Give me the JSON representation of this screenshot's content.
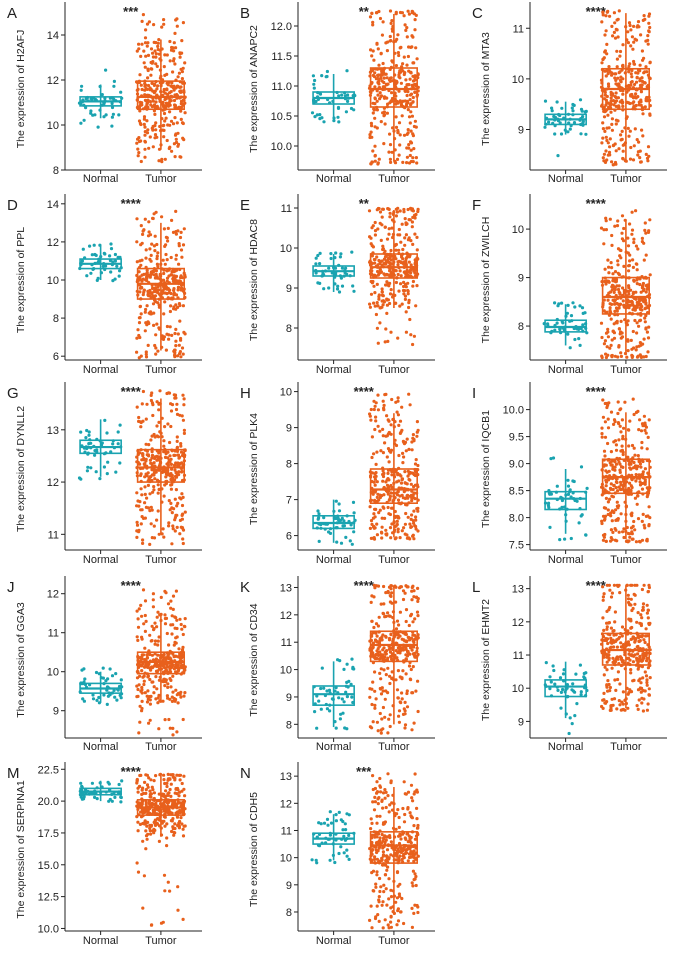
{
  "figure": {
    "style": {
      "normal_color": "#1AA3B0",
      "tumor_color": "#E8601C",
      "axis_color": "#222222"
    }
  },
  "chart_data": [
    {
      "type": "boxplot",
      "label": "A",
      "title": "",
      "ylabel": "The expression of H2AFJ",
      "xlabel": "",
      "categories": [
        "Normal",
        "Tumor"
      ],
      "significance": "***",
      "ylim": [
        8,
        15.2
      ],
      "yticks": [
        8,
        10,
        12,
        14
      ],
      "series": [
        {
          "name": "Normal",
          "box": {
            "q1": 10.85,
            "median": 11.05,
            "q3": 11.25,
            "whisker_low": 10.3,
            "whisker_high": 11.8
          },
          "range": [
            9.9,
            12.6
          ],
          "n": 50
        },
        {
          "name": "Tumor",
          "box": {
            "q1": 10.7,
            "median": 11.25,
            "q3": 11.95,
            "whisker_low": 8.9,
            "whisker_high": 13.8
          },
          "range": [
            8.3,
            15.0
          ],
          "n": 350
        }
      ]
    },
    {
      "type": "boxplot",
      "label": "B",
      "title": "",
      "ylabel": "The expression of ANAPC2",
      "xlabel": "",
      "categories": [
        "Normal",
        "Tumor"
      ],
      "significance": "**",
      "ylim": [
        9.6,
        12.3
      ],
      "yticks": [
        10.0,
        10.5,
        11.0,
        11.5,
        12.0
      ],
      "series": [
        {
          "name": "Normal",
          "box": {
            "q1": 10.7,
            "median": 10.8,
            "q3": 10.9,
            "whisker_low": 10.45,
            "whisker_high": 11.2
          },
          "range": [
            10.4,
            11.6
          ],
          "n": 50
        },
        {
          "name": "Tumor",
          "box": {
            "q1": 10.65,
            "median": 10.95,
            "q3": 11.3,
            "whisker_low": 9.75,
            "whisker_high": 12.2
          },
          "range": [
            9.7,
            12.25
          ],
          "n": 350
        }
      ]
    },
    {
      "type": "boxplot",
      "label": "C",
      "title": "",
      "ylabel": "The expression of MTA3",
      "xlabel": "",
      "categories": [
        "Normal",
        "Tumor"
      ],
      "significance": "****",
      "ylim": [
        8.2,
        11.4
      ],
      "yticks": [
        9,
        10,
        11
      ],
      "series": [
        {
          "name": "Normal",
          "box": {
            "q1": 9.1,
            "median": 9.2,
            "q3": 9.3,
            "whisker_low": 8.9,
            "whisker_high": 9.55
          },
          "range": [
            8.4,
            9.65
          ],
          "n": 50
        },
        {
          "name": "Tumor",
          "box": {
            "q1": 9.4,
            "median": 9.8,
            "q3": 10.2,
            "whisker_low": 8.4,
            "whisker_high": 11.3
          },
          "range": [
            8.3,
            11.35
          ],
          "n": 350
        }
      ]
    },
    {
      "type": "boxplot",
      "label": "D",
      "title": "",
      "ylabel": "The expression of PPL",
      "xlabel": "",
      "categories": [
        "Normal",
        "Tumor"
      ],
      "significance": "****",
      "ylim": [
        5.8,
        14.2
      ],
      "yticks": [
        6,
        8,
        10,
        12,
        14
      ],
      "series": [
        {
          "name": "Normal",
          "box": {
            "q1": 10.6,
            "median": 10.85,
            "q3": 11.1,
            "whisker_low": 10.0,
            "whisker_high": 11.8
          },
          "range": [
            9.9,
            11.9
          ],
          "n": 50
        },
        {
          "name": "Tumor",
          "box": {
            "q1": 9.0,
            "median": 9.8,
            "q3": 10.6,
            "whisker_low": 6.3,
            "whisker_high": 13.0
          },
          "range": [
            5.9,
            13.8
          ],
          "n": 350
        }
      ]
    },
    {
      "type": "boxplot",
      "label": "E",
      "title": "",
      "ylabel": "The expression of HDAC8",
      "xlabel": "",
      "categories": [
        "Normal",
        "Tumor"
      ],
      "significance": "**",
      "ylim": [
        7.2,
        11.2
      ],
      "yticks": [
        8,
        9,
        10,
        11
      ],
      "series": [
        {
          "name": "Normal",
          "box": {
            "q1": 9.3,
            "median": 9.42,
            "q3": 9.55,
            "whisker_low": 8.9,
            "whisker_high": 9.85
          },
          "range": [
            8.9,
            9.9
          ],
          "n": 50
        },
        {
          "name": "Tumor",
          "box": {
            "q1": 9.25,
            "median": 9.52,
            "q3": 9.85,
            "whisker_low": 8.5,
            "whisker_high": 10.95
          },
          "range": [
            7.45,
            11.0
          ],
          "n": 350
        }
      ]
    },
    {
      "type": "boxplot",
      "label": "F",
      "title": "",
      "ylabel": "The expression of ZWILCH",
      "xlabel": "",
      "categories": [
        "Normal",
        "Tumor"
      ],
      "significance": "****",
      "ylim": [
        7.3,
        10.6
      ],
      "yticks": [
        8,
        9,
        10
      ],
      "series": [
        {
          "name": "Normal",
          "box": {
            "q1": 7.88,
            "median": 7.98,
            "q3": 8.12,
            "whisker_low": 7.6,
            "whisker_high": 8.45
          },
          "range": [
            7.5,
            8.5
          ],
          "n": 50
        },
        {
          "name": "Tumor",
          "box": {
            "q1": 8.25,
            "median": 8.6,
            "q3": 9.0,
            "whisker_low": 7.4,
            "whisker_high": 10.2
          },
          "range": [
            7.35,
            10.45
          ],
          "n": 350
        }
      ]
    },
    {
      "type": "boxplot",
      "label": "G",
      "title": "",
      "ylabel": "The expression of DYNLL2",
      "xlabel": "",
      "categories": [
        "Normal",
        "Tumor"
      ],
      "significance": "****",
      "ylim": [
        10.7,
        13.8
      ],
      "yticks": [
        11,
        12,
        13
      ],
      "series": [
        {
          "name": "Normal",
          "box": {
            "q1": 12.55,
            "median": 12.67,
            "q3": 12.8,
            "whisker_low": 12.1,
            "whisker_high": 13.2
          },
          "range": [
            12.05,
            13.6
          ],
          "n": 50
        },
        {
          "name": "Tumor",
          "box": {
            "q1": 12.0,
            "median": 12.28,
            "q3": 12.62,
            "whisker_low": 11.0,
            "whisker_high": 13.6
          },
          "range": [
            10.8,
            13.75
          ],
          "n": 350
        }
      ]
    },
    {
      "type": "boxplot",
      "label": "H",
      "title": "",
      "ylabel": "The expression of PLK4",
      "xlabel": "",
      "categories": [
        "Normal",
        "Tumor"
      ],
      "significance": "****",
      "ylim": [
        5.6,
        10.1
      ],
      "yticks": [
        6,
        7,
        8,
        9,
        10
      ],
      "series": [
        {
          "name": "Normal",
          "box": {
            "q1": 6.2,
            "median": 6.35,
            "q3": 6.55,
            "whisker_low": 5.8,
            "whisker_high": 7.0
          },
          "range": [
            5.75,
            7.4
          ],
          "n": 50
        },
        {
          "name": "Tumor",
          "box": {
            "q1": 6.9,
            "median": 7.28,
            "q3": 7.85,
            "whisker_low": 5.95,
            "whisker_high": 9.4
          },
          "range": [
            5.9,
            10.0
          ],
          "n": 350
        }
      ]
    },
    {
      "type": "boxplot",
      "label": "I",
      "title": "",
      "ylabel": "The expression of IQCB1",
      "xlabel": "",
      "categories": [
        "Normal",
        "Tumor"
      ],
      "significance": "****",
      "ylim": [
        7.4,
        10.4
      ],
      "yticks": [
        7.5,
        8.0,
        8.5,
        9.0,
        9.5,
        10.0
      ],
      "series": [
        {
          "name": "Normal",
          "box": {
            "q1": 8.15,
            "median": 8.35,
            "q3": 8.48,
            "whisker_low": 7.7,
            "whisker_high": 8.9
          },
          "range": [
            7.5,
            9.2
          ],
          "n": 50
        },
        {
          "name": "Tumor",
          "box": {
            "q1": 8.45,
            "median": 8.75,
            "q3": 9.08,
            "whisker_low": 7.6,
            "whisker_high": 9.95
          },
          "range": [
            7.55,
            10.3
          ],
          "n": 350
        }
      ]
    },
    {
      "type": "boxplot",
      "label": "J",
      "title": "",
      "ylabel": "The expression of GGA3",
      "xlabel": "",
      "categories": [
        "Normal",
        "Tumor"
      ],
      "significance": "****",
      "ylim": [
        8.3,
        12.3
      ],
      "yticks": [
        9,
        10,
        11,
        12
      ],
      "series": [
        {
          "name": "Normal",
          "box": {
            "q1": 9.45,
            "median": 9.57,
            "q3": 9.7,
            "whisker_low": 9.2,
            "whisker_high": 10.0
          },
          "range": [
            9.1,
            10.1
          ],
          "n": 50
        },
        {
          "name": "Tumor",
          "box": {
            "q1": 9.95,
            "median": 10.25,
            "q3": 10.5,
            "whisker_low": 9.2,
            "whisker_high": 11.5
          },
          "range": [
            8.35,
            12.1
          ],
          "n": 350
        }
      ]
    },
    {
      "type": "boxplot",
      "label": "K",
      "title": "",
      "ylabel": "The expression of CD34",
      "xlabel": "",
      "categories": [
        "Normal",
        "Tumor"
      ],
      "significance": "****",
      "ylim": [
        7.5,
        13.2
      ],
      "yticks": [
        8,
        9,
        10,
        11,
        12,
        13
      ],
      "series": [
        {
          "name": "Normal",
          "box": {
            "q1": 8.7,
            "median": 9.1,
            "q3": 9.4,
            "whisker_low": 7.9,
            "whisker_high": 10.3
          },
          "range": [
            7.8,
            10.4
          ],
          "n": 50
        },
        {
          "name": "Tumor",
          "box": {
            "q1": 10.3,
            "median": 10.9,
            "q3": 11.4,
            "whisker_low": 8.0,
            "whisker_high": 13.0
          },
          "range": [
            7.6,
            13.1
          ],
          "n": 350
        }
      ]
    },
    {
      "type": "boxplot",
      "label": "L",
      "title": "",
      "ylabel": "The expression of EHMT2",
      "xlabel": "",
      "categories": [
        "Normal",
        "Tumor"
      ],
      "significance": "****",
      "ylim": [
        8.5,
        13.2
      ],
      "yticks": [
        9,
        10,
        11,
        12,
        13
      ],
      "series": [
        {
          "name": "Normal",
          "box": {
            "q1": 9.75,
            "median": 10.05,
            "q3": 10.25,
            "whisker_low": 9.1,
            "whisker_high": 10.8
          },
          "range": [
            8.6,
            10.8
          ],
          "n": 50
        },
        {
          "name": "Tumor",
          "box": {
            "q1": 10.7,
            "median": 11.15,
            "q3": 11.65,
            "whisker_low": 9.4,
            "whisker_high": 13.1
          },
          "range": [
            9.3,
            13.1
          ],
          "n": 350
        }
      ]
    },
    {
      "type": "boxplot",
      "label": "M",
      "title": "",
      "ylabel": "The expression of SERPINA1",
      "xlabel": "",
      "categories": [
        "Normal",
        "Tumor"
      ],
      "significance": "****",
      "ylim": [
        9.8,
        22.6
      ],
      "yticks": [
        10.0,
        12.5,
        15.0,
        17.5,
        20.0,
        22.5
      ],
      "series": [
        {
          "name": "Normal",
          "box": {
            "q1": 20.5,
            "median": 20.75,
            "q3": 21.0,
            "whisker_low": 20.0,
            "whisker_high": 21.6
          },
          "range": [
            19.9,
            22.2
          ],
          "n": 50
        },
        {
          "name": "Tumor",
          "box": {
            "q1": 18.9,
            "median": 19.5,
            "q3": 20.1,
            "whisker_low": 17.2,
            "whisker_high": 22.0
          },
          "range": [
            10.1,
            22.1
          ],
          "n": 350
        }
      ]
    },
    {
      "type": "boxplot",
      "label": "N",
      "title": "",
      "ylabel": "The expression of CDH5",
      "xlabel": "",
      "categories": [
        "Normal",
        "Tumor"
      ],
      "significance": "***",
      "ylim": [
        7.3,
        13.3
      ],
      "yticks": [
        8,
        9,
        10,
        11,
        12,
        13
      ],
      "series": [
        {
          "name": "Normal",
          "box": {
            "q1": 10.5,
            "median": 10.7,
            "q3": 10.9,
            "whisker_low": 9.9,
            "whisker_high": 11.6
          },
          "range": [
            8.8,
            11.7
          ],
          "n": 50
        },
        {
          "name": "Tumor",
          "box": {
            "q1": 9.8,
            "median": 10.45,
            "q3": 10.95,
            "whisker_low": 7.9,
            "whisker_high": 12.6
          },
          "range": [
            7.4,
            13.1
          ],
          "n": 350
        }
      ]
    }
  ]
}
